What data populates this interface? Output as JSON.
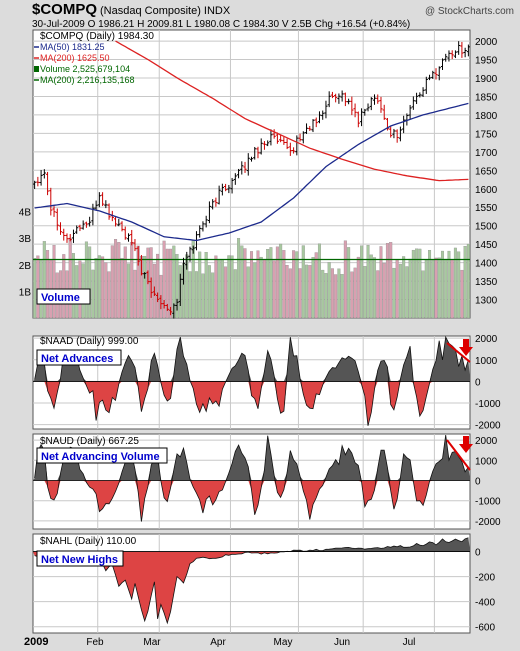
{
  "header": {
    "symbol": "$COMPQ",
    "name": "(Nasdaq Composite) INDX",
    "watermark": "@ StockCharts.com",
    "quote": "30-Jul-2009   O 1986.21  H 2009.81  L 1980.08  C 1984.30  V 2.5B  Chg +16.54 (+0.84%)"
  },
  "colors": {
    "up": "#000000",
    "down": "#cc0000",
    "ma50": "#1c2a8c",
    "ma200": "#dd2222",
    "vol_up": "#a8c8a0",
    "vol_down": "#d8a0b0",
    "vol_ma": "#006600",
    "pos_area": "#555555",
    "neg_area": "#dd4444",
    "label_text": "#0000cc",
    "annotation": "#dd0000"
  },
  "chart_data": [
    {
      "type": "ohlc",
      "panel": "price",
      "legend": [
        "$COMPQ (Daily) 1984.30",
        "MA(50) 1831.25",
        "MA(200) 1625.50",
        "Volume 2,525,679,104",
        "MA(200) 2,216,135,168"
      ],
      "ylim": [
        1250,
        2030
      ],
      "y_ticks": [
        1300,
        1350,
        1400,
        1450,
        1500,
        1550,
        1600,
        1650,
        1700,
        1750,
        1800,
        1850,
        1900,
        1950,
        2000
      ],
      "x_labels": [
        "2009",
        "Feb",
        "Mar",
        "Apr",
        "May",
        "Jun",
        "Jul"
      ],
      "close_anchors": [
        [
          0,
          1620
        ],
        [
          3,
          1650
        ],
        [
          5,
          1550
        ],
        [
          10,
          1460
        ],
        [
          14,
          1500
        ],
        [
          17,
          1510
        ],
        [
          20,
          1585
        ],
        [
          23,
          1530
        ],
        [
          26,
          1500
        ],
        [
          30,
          1450
        ],
        [
          33,
          1380
        ],
        [
          36,
          1320
        ],
        [
          39,
          1300
        ],
        [
          42,
          1270
        ],
        [
          44,
          1300
        ],
        [
          46,
          1395
        ],
        [
          49,
          1450
        ],
        [
          52,
          1510
        ],
        [
          55,
          1560
        ],
        [
          58,
          1600
        ],
        [
          61,
          1620
        ],
        [
          64,
          1650
        ],
        [
          67,
          1690
        ],
        [
          70,
          1720
        ],
        [
          73,
          1740
        ],
        [
          76,
          1720
        ],
        [
          79,
          1700
        ],
        [
          82,
          1740
        ],
        [
          85,
          1770
        ],
        [
          88,
          1790
        ],
        [
          91,
          1845
        ],
        [
          94,
          1860
        ],
        [
          97,
          1835
        ],
        [
          100,
          1780
        ],
        [
          103,
          1830
        ],
        [
          106,
          1850
        ],
        [
          109,
          1760
        ],
        [
          112,
          1745
        ],
        [
          115,
          1800
        ],
        [
          118,
          1850
        ],
        [
          121,
          1885
        ],
        [
          124,
          1920
        ],
        [
          127,
          1960
        ],
        [
          130,
          1975
        ],
        [
          134,
          1984.3
        ]
      ],
      "ma50_anchors": [
        [
          0,
          1548
        ],
        [
          10,
          1560
        ],
        [
          20,
          1540
        ],
        [
          30,
          1510
        ],
        [
          40,
          1470
        ],
        [
          50,
          1460
        ],
        [
          60,
          1480
        ],
        [
          70,
          1510
        ],
        [
          80,
          1575
        ],
        [
          90,
          1660
        ],
        [
          100,
          1720
        ],
        [
          110,
          1770
        ],
        [
          120,
          1800
        ],
        [
          134,
          1831.25
        ]
      ],
      "ma200_anchors": [
        [
          25,
          2000
        ],
        [
          35,
          1950
        ],
        [
          45,
          1895
        ],
        [
          55,
          1845
        ],
        [
          65,
          1790
        ],
        [
          75,
          1750
        ],
        [
          85,
          1710
        ],
        [
          95,
          1680
        ],
        [
          105,
          1653
        ],
        [
          115,
          1635
        ],
        [
          125,
          1622
        ],
        [
          134,
          1625.5
        ]
      ],
      "volume": {
        "label": "Volume",
        "ylim_billions": [
          0,
          5
        ],
        "y_ticks": [
          "1B",
          "2B",
          "3B",
          "4B"
        ],
        "ma200_billions": 2.2
      }
    },
    {
      "type": "area",
      "panel": "naad",
      "legend": "$NAAD (Daily) 999.00",
      "label": "Net Advances",
      "ylim": [
        -2200,
        2100
      ],
      "y_ticks": [
        -2000,
        -1000,
        0,
        1000,
        2000
      ],
      "last_value": 999.0
    },
    {
      "type": "area",
      "panel": "naud",
      "legend": "$NAUD (Daily) 667.25",
      "label": "Net Advancing Volume",
      "ylim": [
        -2400,
        2300
      ],
      "y_ticks": [
        -2000,
        -1000,
        0,
        1000,
        2000
      ],
      "last_value": 667.25
    },
    {
      "type": "area",
      "panel": "nahl",
      "legend": "$NAHL (Daily) 110.00",
      "label": "Net New Highs",
      "ylim": [
        -650,
        140
      ],
      "y_ticks": [
        -600,
        -400,
        -200,
        0
      ],
      "last_value": 110.0,
      "anchors": [
        [
          0,
          -30
        ],
        [
          4,
          -50
        ],
        [
          6,
          -100
        ],
        [
          10,
          -80
        ],
        [
          13,
          -40
        ],
        [
          16,
          -70
        ],
        [
          18,
          -90
        ],
        [
          20,
          -40
        ],
        [
          22,
          -150
        ],
        [
          24,
          -100
        ],
        [
          26,
          -280
        ],
        [
          28,
          -230
        ],
        [
          30,
          -380
        ],
        [
          31,
          -250
        ],
        [
          33,
          -460
        ],
        [
          34,
          -560
        ],
        [
          35,
          -480
        ],
        [
          36,
          -350
        ],
        [
          37,
          -240
        ],
        [
          38,
          -540
        ],
        [
          39,
          -420
        ],
        [
          41,
          -570
        ],
        [
          42,
          -480
        ],
        [
          44,
          -200
        ],
        [
          46,
          -250
        ],
        [
          48,
          -100
        ],
        [
          50,
          -60
        ],
        [
          52,
          -40
        ],
        [
          55,
          -60
        ],
        [
          60,
          -25
        ],
        [
          65,
          -10
        ],
        [
          70,
          -15
        ],
        [
          75,
          -5
        ],
        [
          80,
          5
        ],
        [
          85,
          10
        ],
        [
          90,
          15
        ],
        [
          95,
          25
        ],
        [
          100,
          30
        ],
        [
          104,
          20
        ],
        [
          108,
          30
        ],
        [
          112,
          45
        ],
        [
          116,
          30
        ],
        [
          118,
          60
        ],
        [
          120,
          40
        ],
        [
          122,
          80
        ],
        [
          124,
          50
        ],
        [
          126,
          95
        ],
        [
          128,
          70
        ],
        [
          130,
          105
        ],
        [
          132,
          80
        ],
        [
          134,
          110
        ]
      ]
    }
  ]
}
